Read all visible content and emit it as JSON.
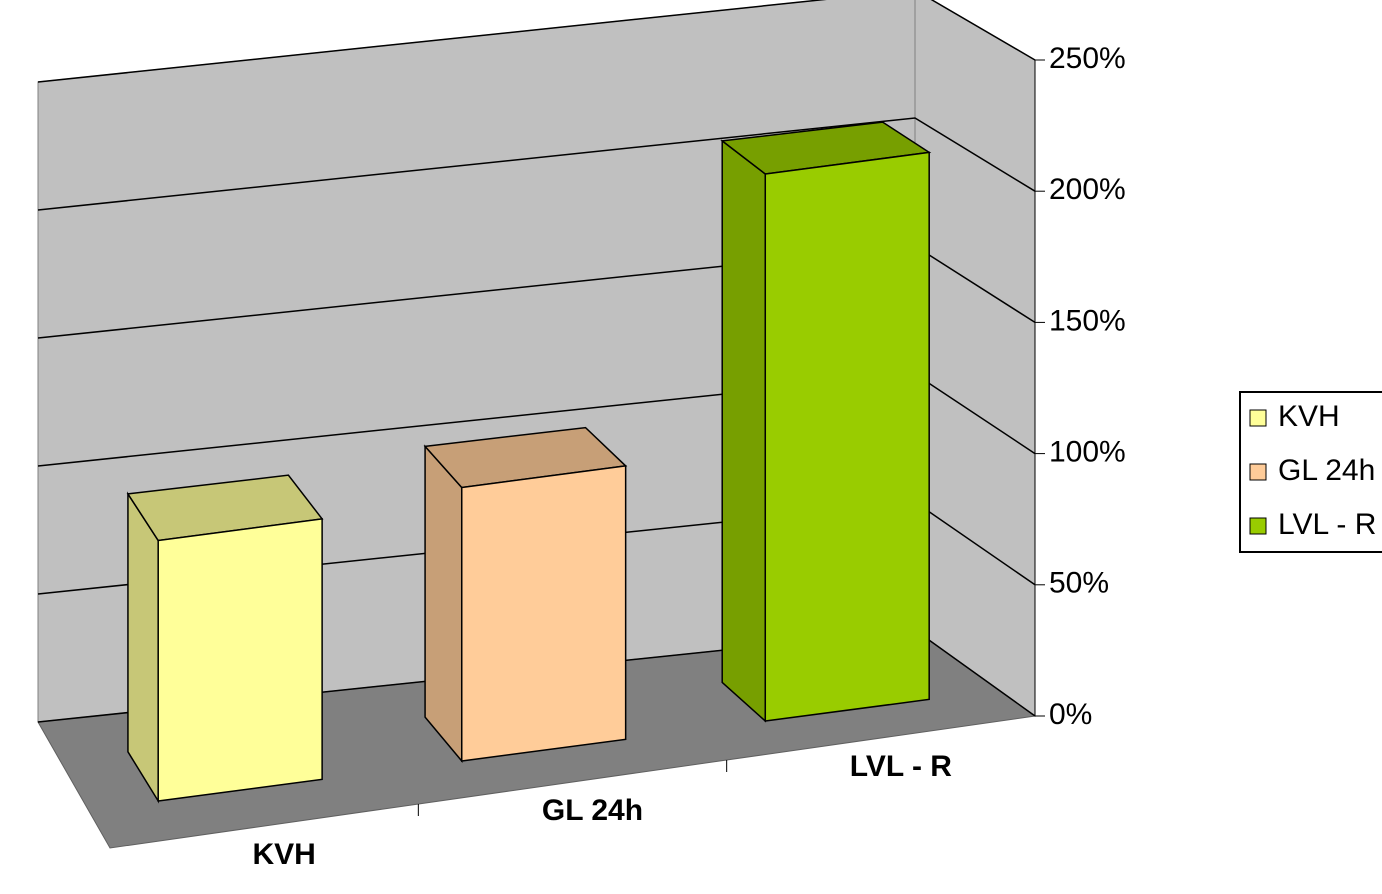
{
  "chart_data": {
    "type": "bar3d",
    "categories": [
      "KVH",
      "GL 24h",
      "LVL - R"
    ],
    "values": [
      100,
      105,
      210
    ],
    "colors": [
      "#ffff99",
      "#ffcc99",
      "#99cc00"
    ],
    "ylim": [
      0,
      250
    ],
    "yticks": [
      {
        "value": 0,
        "label": "0%"
      },
      {
        "value": 50,
        "label": "50%"
      },
      {
        "value": 100,
        "label": "100%"
      },
      {
        "value": 150,
        "label": "150%"
      },
      {
        "value": 200,
        "label": "200%"
      },
      {
        "value": 250,
        "label": "250%"
      }
    ],
    "grid": true,
    "legend": "right"
  }
}
